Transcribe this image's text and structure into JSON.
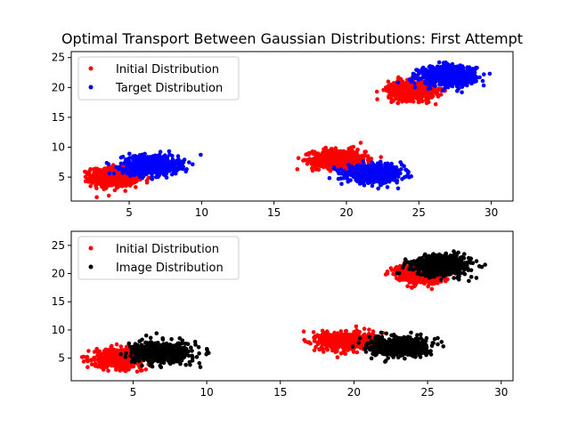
{
  "chart_data": [
    {
      "type": "scatter",
      "title": "Optimal Transport Between Gaussian Distributions: First Attempt",
      "xlim": [
        1,
        31.5
      ],
      "ylim": [
        1,
        26
      ],
      "xticks": [
        5,
        10,
        15,
        20,
        25,
        30
      ],
      "yticks": [
        5,
        10,
        15,
        20,
        25
      ],
      "grid": false,
      "legend_position": "top-left",
      "series": [
        {
          "name": "Initial Distribution",
          "color": "#ff0000",
          "clusters": [
            {
              "center": [
                4,
                5
              ],
              "spread": [
                0.8,
                0.8
              ],
              "n": 650
            },
            {
              "center": [
                19.5,
                8
              ],
              "spread": [
                0.9,
                0.8
              ],
              "n": 650
            },
            {
              "center": [
                24.5,
                19.5
              ],
              "spread": [
                0.8,
                0.8
              ],
              "n": 650
            }
          ]
        },
        {
          "name": "Target Distribution",
          "color": "#0000ff",
          "clusters": [
            {
              "center": [
                6.5,
                7
              ],
              "spread": [
                0.95,
                0.8
              ],
              "n": 650
            },
            {
              "center": [
                22,
                5.5
              ],
              "spread": [
                0.95,
                0.7
              ],
              "n": 650
            },
            {
              "center": [
                27,
                22
              ],
              "spread": [
                0.95,
                0.8
              ],
              "n": 650
            }
          ]
        }
      ]
    },
    {
      "type": "scatter",
      "title": "",
      "xlim": [
        0.8,
        30.8
      ],
      "ylim": [
        1,
        27.5
      ],
      "xticks": [
        5,
        10,
        15,
        20,
        25,
        30
      ],
      "yticks": [
        5,
        10,
        15,
        20,
        25
      ],
      "grid": false,
      "legend_position": "top-left",
      "series": [
        {
          "name": "Initial Distribution",
          "color": "#ff0000",
          "clusters": [
            {
              "center": [
                4,
                5
              ],
              "spread": [
                0.8,
                0.8
              ],
              "n": 650
            },
            {
              "center": [
                19.5,
                8
              ],
              "spread": [
                0.9,
                0.8
              ],
              "n": 650
            },
            {
              "center": [
                24.5,
                20
              ],
              "spread": [
                0.8,
                0.8
              ],
              "n": 650
            }
          ]
        },
        {
          "name": "Image Distribution",
          "color": "#000000",
          "clusters": [
            {
              "center": [
                7,
                6
              ],
              "spread": [
                0.95,
                0.9
              ],
              "n": 650
            },
            {
              "center": [
                23,
                7
              ],
              "spread": [
                0.95,
                0.8
              ],
              "n": 650
            },
            {
              "center": [
                26,
                21.5
              ],
              "spread": [
                0.95,
                0.9
              ],
              "n": 650
            }
          ]
        }
      ]
    }
  ]
}
